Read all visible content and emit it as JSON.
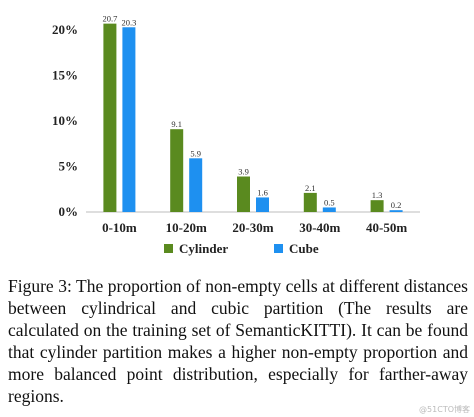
{
  "chart_data": {
    "type": "bar",
    "categories": [
      "0-10m",
      "10-20m",
      "20-30m",
      "30-40m",
      "40-50m"
    ],
    "series": [
      {
        "name": "Cylinder",
        "values": [
          20.7,
          9.1,
          3.9,
          2.1,
          1.3
        ],
        "color": "#5a8a1f"
      },
      {
        "name": "Cube",
        "values": [
          20.3,
          5.9,
          1.6,
          0.5,
          0.2
        ],
        "color": "#1e90f0"
      }
    ],
    "yticks": [
      "0%",
      "5%",
      "10%",
      "15%",
      "20%"
    ],
    "ylim": [
      0,
      20
    ],
    "grid": false,
    "legend_position": "bottom",
    "title": "",
    "xlabel": "",
    "ylabel": ""
  },
  "caption": "Figure 3: The proportion of non-empty cells at different distances between cylindrical and cubic partition (The results are calculated on the training set of SemanticKITTI). It can be found that cylinder partition makes a higher non-empty proportion and more balanced point distribution, especially for farther-away regions.",
  "watermark": "@51CTO博客"
}
